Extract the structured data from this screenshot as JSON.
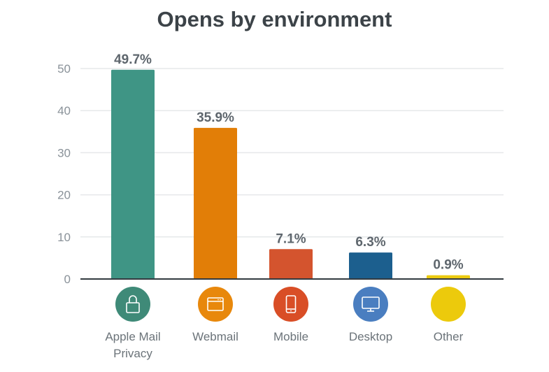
{
  "chart_data": {
    "type": "bar",
    "title": "Opens by environment",
    "xlabel": "",
    "ylabel": "",
    "ylim": [
      0,
      50
    ],
    "yticks": [
      0,
      10,
      20,
      30,
      40,
      50
    ],
    "grid": true,
    "categories": [
      "Apple Mail Privacy",
      "Webmail",
      "Mobile",
      "Desktop",
      "Other"
    ],
    "values": [
      49.7,
      35.9,
      7.1,
      6.3,
      0.9
    ],
    "value_labels": [
      "49.7%",
      "35.9%",
      "7.1%",
      "6.3%",
      "0.9%"
    ],
    "colors": [
      "#3f9585",
      "#e27e07",
      "#d4542e",
      "#1c5f8e",
      "#eccb11"
    ],
    "icon_colors": [
      "#3f8a78",
      "#e8880c",
      "#d94e26",
      "#4a7ec0",
      "#ecca0c"
    ],
    "icons": [
      "lock-icon",
      "browser-window-icon",
      "mobile-phone-icon",
      "desktop-monitor-icon",
      ""
    ]
  }
}
